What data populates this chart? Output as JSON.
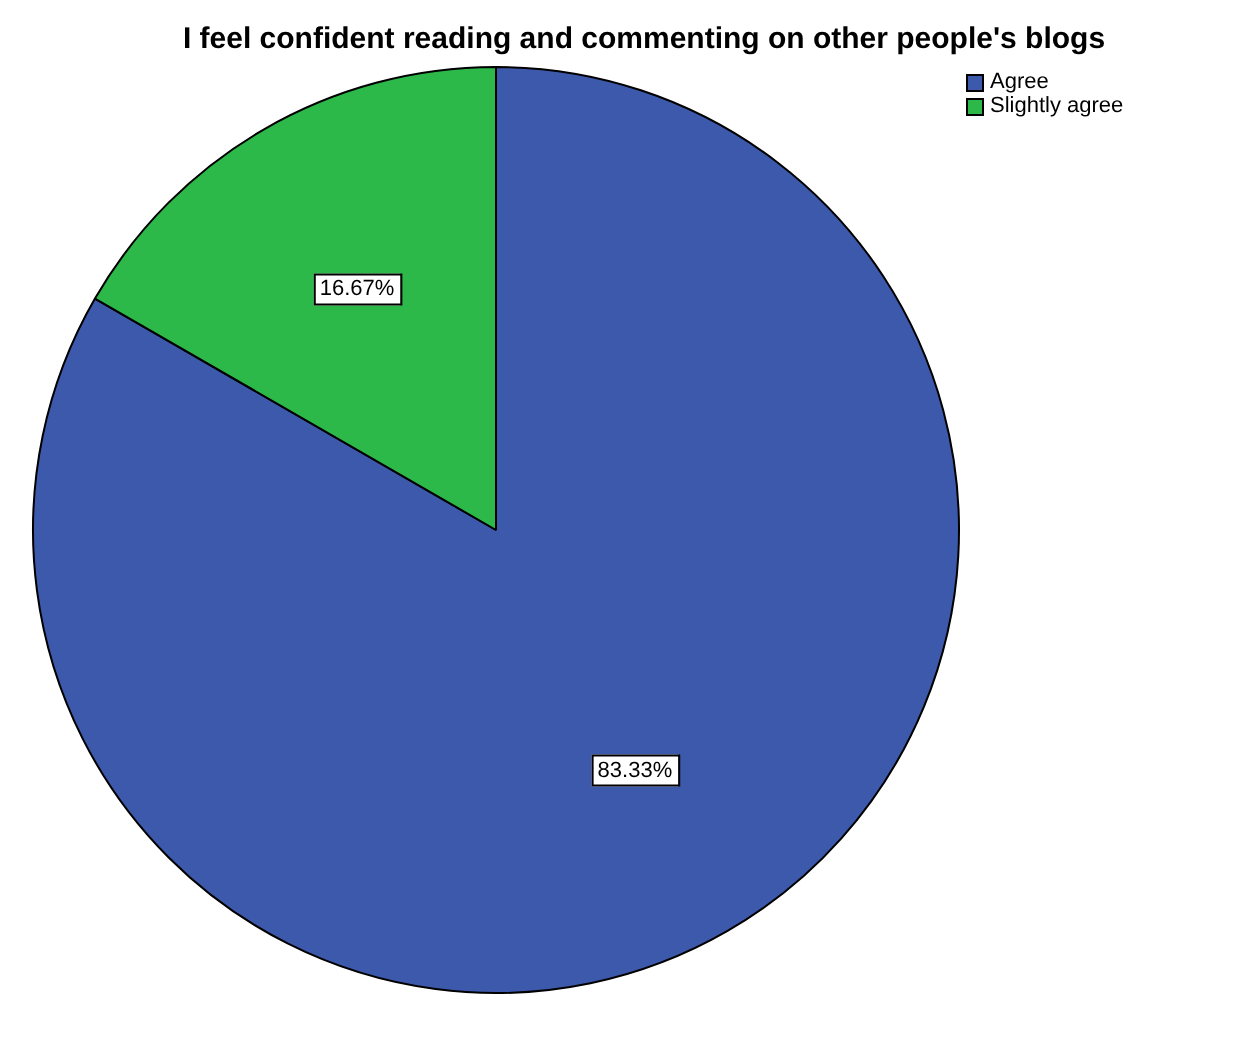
{
  "chart_data": {
    "type": "pie",
    "title": "I feel confident reading and commenting on other people's blogs",
    "categories": [
      "Agree",
      "Slightly agree"
    ],
    "values": [
      83.33,
      16.67
    ],
    "colors": [
      "#3d59ab",
      "#2db84a"
    ],
    "value_labels": [
      "83.33%",
      "16.67%"
    ],
    "legend": "top right"
  }
}
